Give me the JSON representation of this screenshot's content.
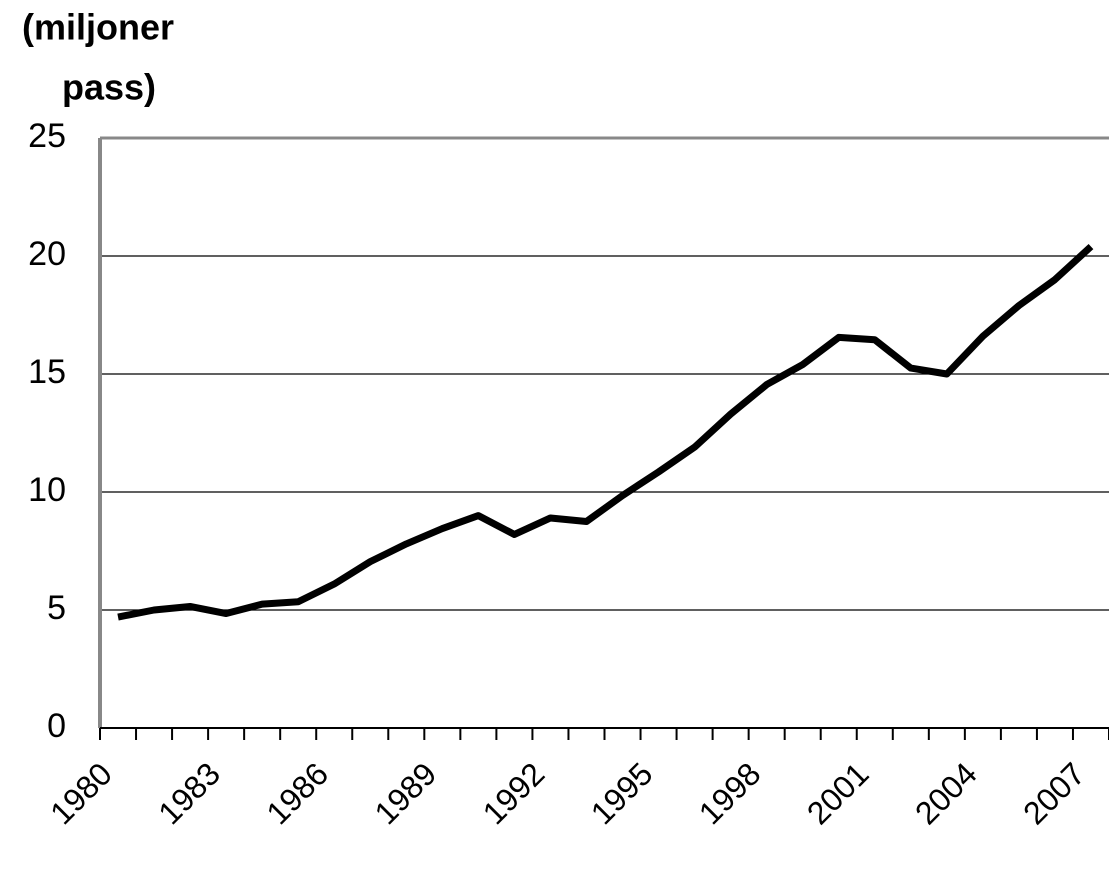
{
  "chart_data": {
    "type": "line",
    "ylabel": [
      "(miljoner",
      "pass)"
    ],
    "categories": [
      "1980",
      null,
      null,
      "1983",
      null,
      null,
      "1986",
      null,
      null,
      "1989",
      null,
      null,
      "1992",
      null,
      null,
      "1995",
      null,
      null,
      "1998",
      null,
      null,
      "2001",
      null,
      null,
      "2004",
      null,
      null,
      "2007"
    ],
    "series": [
      {
        "color": "#000000",
        "values": [
          4.7,
          5.0,
          5.15,
          4.85,
          5.25,
          5.35,
          6.1,
          7.05,
          7.8,
          8.45,
          9.0,
          8.2,
          8.9,
          8.75,
          9.85,
          10.85,
          11.9,
          13.3,
          14.55,
          15.4,
          16.55,
          16.45,
          15.25,
          15.0,
          16.6,
          17.9,
          19.0,
          20.4
        ]
      }
    ],
    "ylim": [
      0,
      25
    ],
    "yticks": [
      0,
      5,
      10,
      15,
      20,
      25
    ],
    "grid": true
  }
}
